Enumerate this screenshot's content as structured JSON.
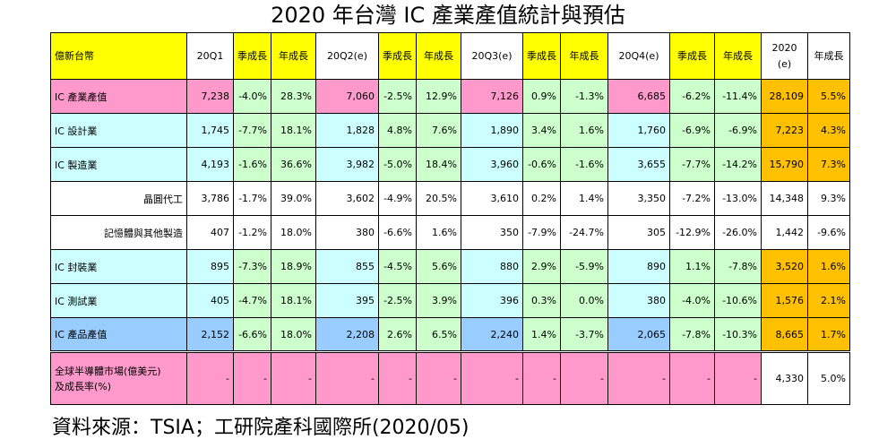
{
  "title": "2020 年台灣 IC 產業產值統計與預估",
  "source": "資料來源：TSIA；工研院產科國際所(2020/05)",
  "header": [
    "億新台幣",
    "20Q1",
    "季成長",
    "年成長",
    "20Q2(e)",
    "季成長",
    "年成長",
    "20Q3(e)",
    "季成長",
    "年成長",
    "20Q4(e)",
    "季成長",
    "年成長",
    "2020\n(e)",
    "年成長"
  ],
  "rows": [
    {
      "label": "IC 產業產值",
      "values": [
        "7,238",
        "-4.0%",
        "28.3%",
        "7,060",
        "-2.5%",
        "12.9%",
        "7,126",
        "0.9%",
        "-1.3%",
        "6,685",
        "-6.2%",
        "-11.4%",
        "28,109",
        "5.5%"
      ]
    },
    {
      "label": "IC 設計業",
      "values": [
        "1,745",
        "-7.7%",
        "18.1%",
        "1,828",
        "4.8%",
        "7.6%",
        "1,890",
        "3.4%",
        "1.6%",
        "1,760",
        "-6.9%",
        "-6.9%",
        "7,223",
        "4.3%"
      ]
    },
    {
      "label": "IC 製造業",
      "values": [
        "4,193",
        "-1.6%",
        "36.6%",
        "3,982",
        "-5.0%",
        "18.4%",
        "3,960",
        "-0.6%",
        "-1.6%",
        "3,655",
        "-7.7%",
        "-14.2%",
        "15,790",
        "7.3%"
      ]
    },
    {
      "label": "晶圓代工",
      "values": [
        "3,786",
        "-1.7%",
        "39.0%",
        "3,602",
        "-4.9%",
        "20.5%",
        "3,610",
        "0.2%",
        "1.4%",
        "3,350",
        "-7.2%",
        "-13.0%",
        "14,348",
        "9.3%"
      ]
    },
    {
      "label": "記憶體與其他製造",
      "values": [
        "407",
        "-1.2%",
        "18.0%",
        "380",
        "-6.6%",
        "1.6%",
        "350",
        "-7.9%",
        "-24.7%",
        "305",
        "-12.9%",
        "-26.0%",
        "1,442",
        "-9.6%"
      ]
    },
    {
      "label": "IC 封裝業",
      "values": [
        "895",
        "-7.3%",
        "18.9%",
        "855",
        "-4.5%",
        "5.6%",
        "880",
        "2.9%",
        "-5.9%",
        "890",
        "1.1%",
        "-7.8%",
        "3,520",
        "1.6%"
      ]
    },
    {
      "label": "IC 測試業",
      "values": [
        "405",
        "-4.7%",
        "18.1%",
        "395",
        "-2.5%",
        "3.9%",
        "396",
        "0.3%",
        "0.0%",
        "380",
        "-4.0%",
        "-10.6%",
        "1,576",
        "2.1%"
      ]
    },
    {
      "label": "IC 產品產值",
      "values": [
        "2,152",
        "-6.6%",
        "18.0%",
        "2,208",
        "2.6%",
        "6.5%",
        "2,240",
        "1.4%",
        "-3.7%",
        "2,065",
        "-7.8%",
        "-10.3%",
        "8,665",
        "1.7%"
      ]
    },
    {
      "label": "全球半導體市場(億美元)\n及成長率(%)",
      "values": [
        "-",
        "-",
        "-",
        "-",
        "-",
        "-",
        "-",
        "-",
        "-",
        "-",
        "-",
        "-",
        "4,330",
        "5.0%"
      ]
    }
  ],
  "colors": {
    "pink": "#ff99cc",
    "blue": "#99ccff",
    "cyan": "#ccffff",
    "green": "#ccffcc",
    "yellow": "#ffff00",
    "orange": "#ffc000",
    "white": "#ffffff"
  }
}
